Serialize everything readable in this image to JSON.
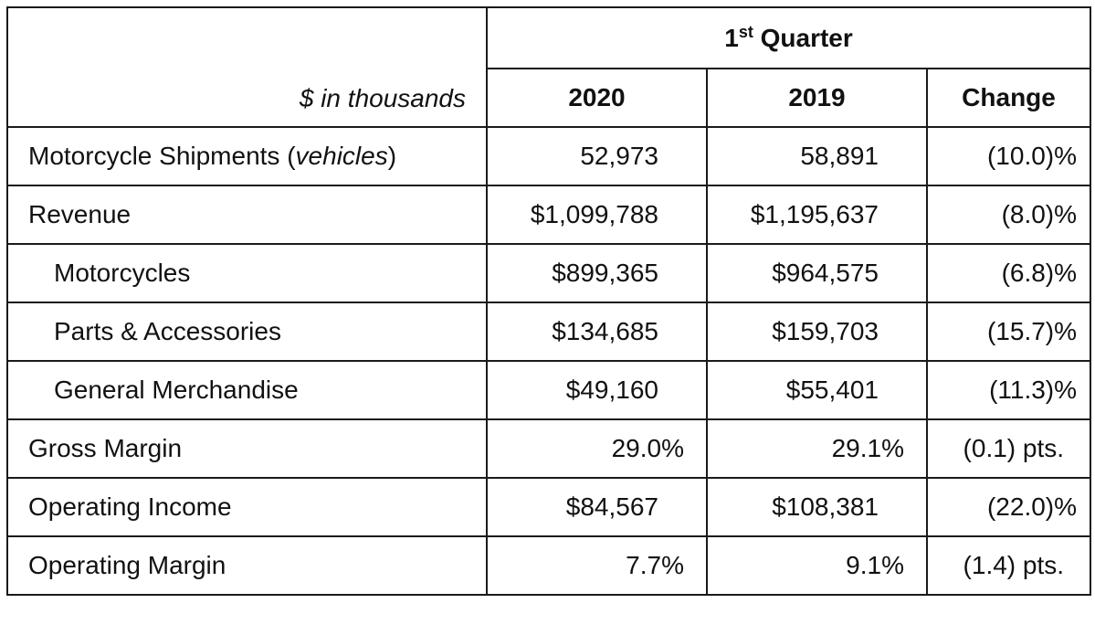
{
  "header": {
    "quarter_num": "1",
    "quarter_sup": "st",
    "quarter_word": " Quarter",
    "units_label": "$ in thousands",
    "col_2020": "2020",
    "col_2019": "2019",
    "col_change": "Change"
  },
  "rows": [
    {
      "label": "Motorcycle Shipments (",
      "label_italic": "vehicles",
      "label_tail": ")",
      "v2020": "52,973",
      "v2019": "58,891",
      "change": "(10.0)%"
    },
    {
      "label": "Revenue",
      "v2020": "$1,099,788",
      "v2019": "$1,195,637",
      "change": "(8.0)%"
    },
    {
      "label": "Motorcycles",
      "v2020": "$899,365",
      "v2019": "$964,575",
      "change": "(6.8)%"
    },
    {
      "label": "Parts & Accessories",
      "v2020": "$134,685",
      "v2019": "$159,703",
      "change": "(15.7)%"
    },
    {
      "label": "General Merchandise",
      "v2020": "$49,160",
      "v2019": "$55,401",
      "change": "(11.3)%"
    },
    {
      "label": "Gross Margin",
      "v2020": "29.0%",
      "v2019": "29.1%",
      "change": "(0.1) pts."
    },
    {
      "label": "Operating Income",
      "v2020": "$84,567",
      "v2019": "$108,381",
      "change": "(22.0)%"
    },
    {
      "label": "Operating Margin",
      "v2020": "7.7%",
      "v2019": "9.1%",
      "change": "(1.4) pts."
    }
  ]
}
